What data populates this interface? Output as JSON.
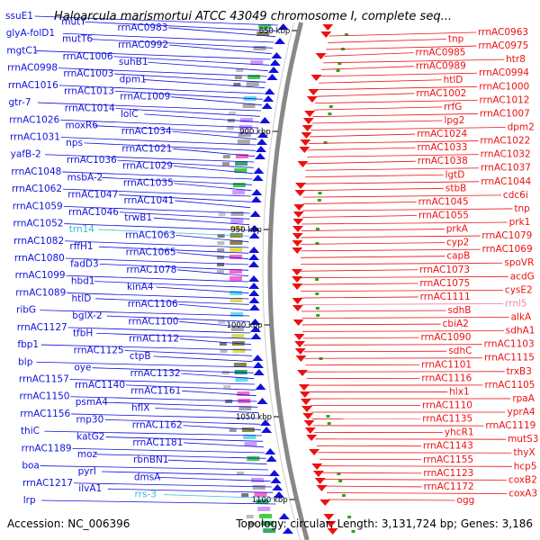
{
  "title": "Haloarcula marismortui ATCC 43049 chromosome I, complete seq...",
  "accession": "Accession: NC_006396",
  "summary": "Topology: circular; Length: 3,131,724 bp; Genes: 3,186",
  "colors": {
    "plus": "#1010dd",
    "minus": "#ee1010",
    "rna": "#33bbdd",
    "backbone": "#888888"
  },
  "ticks": [
    "850 kbp",
    "900 kbp",
    "950 kbp",
    "1000 kbp",
    "1050 kbp",
    "1100 kbp"
  ],
  "left_labels": [
    "ssuE1",
    "mutY",
    "rrnAC0983",
    "glyA-folD1",
    "mutT6",
    "rrnAC0992",
    "mgtC1",
    "rrnAC1006",
    "suhB1",
    "rrnAC0998",
    "rrnAC1003",
    "dpm1",
    "rrnAC1016",
    "rrnAC1013",
    "rrnAC1009",
    "gtr-7",
    "rrnAC1014",
    "lolC",
    "rrnAC1026",
    "moxR6",
    "rrnAC1034",
    "rrnAC1031",
    "nps",
    "rrnAC1021",
    "yafB-2",
    "rrnAC1036",
    "rrnAC1029",
    "rrnAC1048",
    "msbA-2",
    "rrnAC1035",
    "rrnAC1062",
    "rrnAC1047",
    "rrnAC1041",
    "rrnAC1059",
    "rrnAC1046",
    "trwB1",
    "rrnAC1052",
    "trn14",
    "rrnAC1063",
    "rrnAC1082",
    "rffH1",
    "rrnAC1065",
    "rrnAC1080",
    "fadD3",
    "rrnAC1078",
    "rrnAC1099",
    "hbd1",
    "kinA4",
    "rrnAC1089",
    "htlD",
    "rrnAC1106",
    "ribG",
    "bglX-2",
    "rrnAC1100",
    "rrnAC1127",
    "tfbH",
    "rrnAC1112",
    "fbp1",
    "rrnAC1125",
    "ctpB",
    "blp",
    "oye",
    "rrnAC1132",
    "rrnAC1157",
    "rrnAC1140",
    "rrnAC1161",
    "rrnAC1150",
    "psmA4",
    "hflX",
    "rrnAC1156",
    "rnp30",
    "rrnAC1162",
    "thiC",
    "katG2",
    "rrnAC1181",
    "rrnAC1189",
    "moz",
    "rbnBN1",
    "boa",
    "pyrI",
    "dmsA",
    "rrnAC1217",
    "ilvA1",
    "rrs-3",
    "lrp"
  ],
  "right_labels": [
    "rrnAC0963",
    "tnp",
    "rrnAC0975",
    "rrnAC0985",
    "htr8",
    "rrnAC0989",
    "rrnAC0994",
    "htlD",
    "rrnAC1000",
    "rrnAC1002",
    "rrnAC1012",
    "rrfG",
    "rrnAC1007",
    "lpg2",
    "dpm2",
    "rrnAC1024",
    "rrnAC1022",
    "rrnAC1033",
    "rrnAC1032",
    "rrnAC1038",
    "rrnAC1037",
    "lgtD",
    "rrnAC1044",
    "stbB",
    "cdc6i",
    "rrnAC1045",
    "tnp",
    "rrnAC1055",
    "prk1",
    "prkA",
    "rrnAC1079",
    "cyp2",
    "rrnAC1069",
    "capB",
    "spoVR",
    "rrnAC1073",
    "acdG",
    "rrnAC1075",
    "cysE2",
    "rrnAC1111",
    "rrnl5",
    "sdhB",
    "alkA",
    "cbiA2",
    "sdhA1",
    "rrnAC1090",
    "rrnAC1103",
    "sdhC",
    "rrnAC1115",
    "rrnAC1101",
    "trxB3",
    "rrnAC1116",
    "rrnAC1105",
    "hlx1",
    "rpaA",
    "rrnAC1110",
    "yprA4",
    "rrnAC1135",
    "rrnAC1119",
    "yhcR1",
    "mutS3",
    "rrnAC1143",
    "thyX",
    "rrnAC1155",
    "hcp5",
    "rrnAC1123",
    "coxB2",
    "rrnAC1172",
    "coxA3",
    "ogg"
  ],
  "rna_labels": [
    "trn14",
    "rrs-3",
    "rrnl5"
  ]
}
